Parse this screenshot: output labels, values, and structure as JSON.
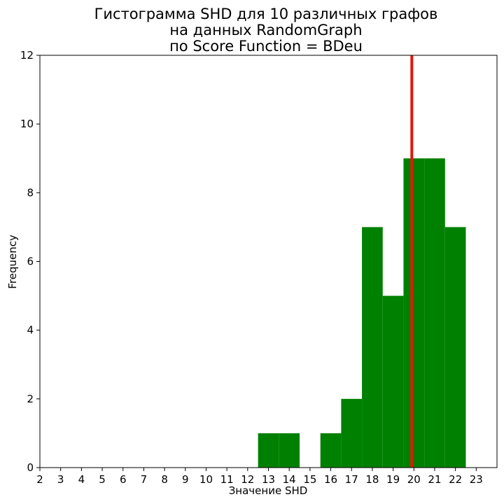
{
  "chart_data": {
    "type": "bar",
    "title_lines": [
      "Гистограмма SHD для 10 различных графов",
      "на данных RandomGraph",
      "по Score Function = BDeu"
    ],
    "xlabel": "Значение SHD",
    "ylabel": "Frequency",
    "xlim": [
      2,
      24
    ],
    "ylim": [
      0,
      12
    ],
    "x_ticks": [
      2,
      3,
      4,
      5,
      6,
      7,
      8,
      9,
      10,
      11,
      12,
      13,
      14,
      15,
      16,
      17,
      18,
      19,
      20,
      21,
      22,
      23
    ],
    "y_ticks": [
      0,
      2,
      4,
      6,
      8,
      10,
      12
    ],
    "bins": [
      {
        "x": 13,
        "value": 1
      },
      {
        "x": 14,
        "value": 1
      },
      {
        "x": 16,
        "value": 1
      },
      {
        "x": 17,
        "value": 2
      },
      {
        "x": 18,
        "value": 7
      },
      {
        "x": 19,
        "value": 5
      },
      {
        "x": 20,
        "value": 9
      },
      {
        "x": 21,
        "value": 9
      },
      {
        "x": 22,
        "value": 7
      }
    ],
    "bar_color": "#008000",
    "reference_line": {
      "x": 19.9,
      "color": "#e8150b"
    },
    "grid": false
  }
}
